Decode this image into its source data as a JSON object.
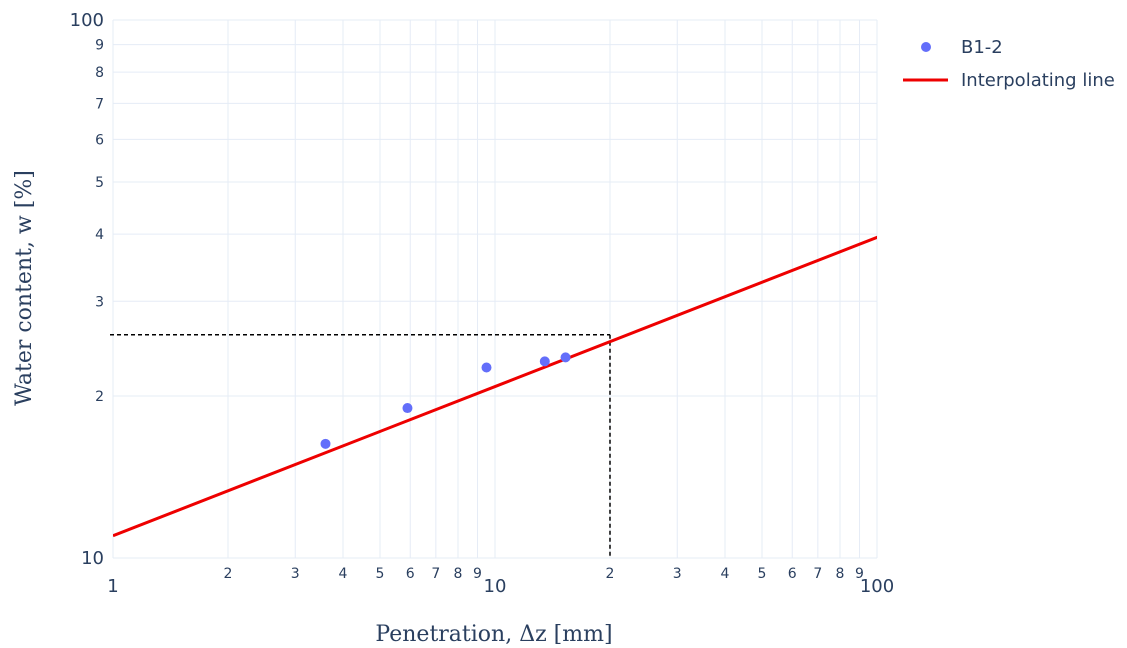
{
  "chart_data": {
    "type": "scatter",
    "xlabel": "Penetration, Δz [mm]",
    "ylabel": "Water content, w [%]",
    "x_scale": "log",
    "y_scale": "log",
    "xlim": [
      1,
      100
    ],
    "ylim": [
      10,
      100
    ],
    "grid": true,
    "legend_position": "top-right",
    "x_major_ticks": [
      {
        "value": 1,
        "label": "1"
      },
      {
        "value": 10,
        "label": "10"
      },
      {
        "value": 100,
        "label": "100"
      }
    ],
    "x_minor_ticks": [
      {
        "value": 2,
        "label": "2"
      },
      {
        "value": 3,
        "label": "3"
      },
      {
        "value": 4,
        "label": "4"
      },
      {
        "value": 5,
        "label": "5"
      },
      {
        "value": 6,
        "label": "6"
      },
      {
        "value": 7,
        "label": "7"
      },
      {
        "value": 8,
        "label": "8"
      },
      {
        "value": 9,
        "label": "9"
      },
      {
        "value": 20,
        "label": "2"
      },
      {
        "value": 30,
        "label": "3"
      },
      {
        "value": 40,
        "label": "4"
      },
      {
        "value": 50,
        "label": "5"
      },
      {
        "value": 60,
        "label": "6"
      },
      {
        "value": 70,
        "label": "7"
      },
      {
        "value": 80,
        "label": "8"
      },
      {
        "value": 90,
        "label": "9"
      }
    ],
    "y_major_ticks": [
      {
        "value": 10,
        "label": "10"
      },
      {
        "value": 100,
        "label": "100"
      }
    ],
    "y_minor_ticks": [
      {
        "value": 20,
        "label": "2"
      },
      {
        "value": 30,
        "label": "3"
      },
      {
        "value": 40,
        "label": "4"
      },
      {
        "value": 50,
        "label": "5"
      },
      {
        "value": 60,
        "label": "6"
      },
      {
        "value": 70,
        "label": "7"
      },
      {
        "value": 80,
        "label": "8"
      },
      {
        "value": 90,
        "label": "9"
      }
    ],
    "series": [
      {
        "name": "B1-2",
        "mode": "markers",
        "color": "#636efa",
        "points": [
          {
            "x": 3.6,
            "y": 16.3
          },
          {
            "x": 5.9,
            "y": 19.0
          },
          {
            "x": 9.5,
            "y": 22.6
          },
          {
            "x": 13.5,
            "y": 23.2
          },
          {
            "x": 15.3,
            "y": 23.6
          }
        ]
      },
      {
        "name": "Interpolating line",
        "mode": "lines",
        "color": "#ee0000",
        "points": [
          {
            "x": 1,
            "y": 11.0
          },
          {
            "x": 110,
            "y": 40.5
          }
        ]
      }
    ],
    "annotation_lines": {
      "color": "#000000",
      "style": "dashed",
      "x_value": 20,
      "y_value": 26.0
    }
  }
}
